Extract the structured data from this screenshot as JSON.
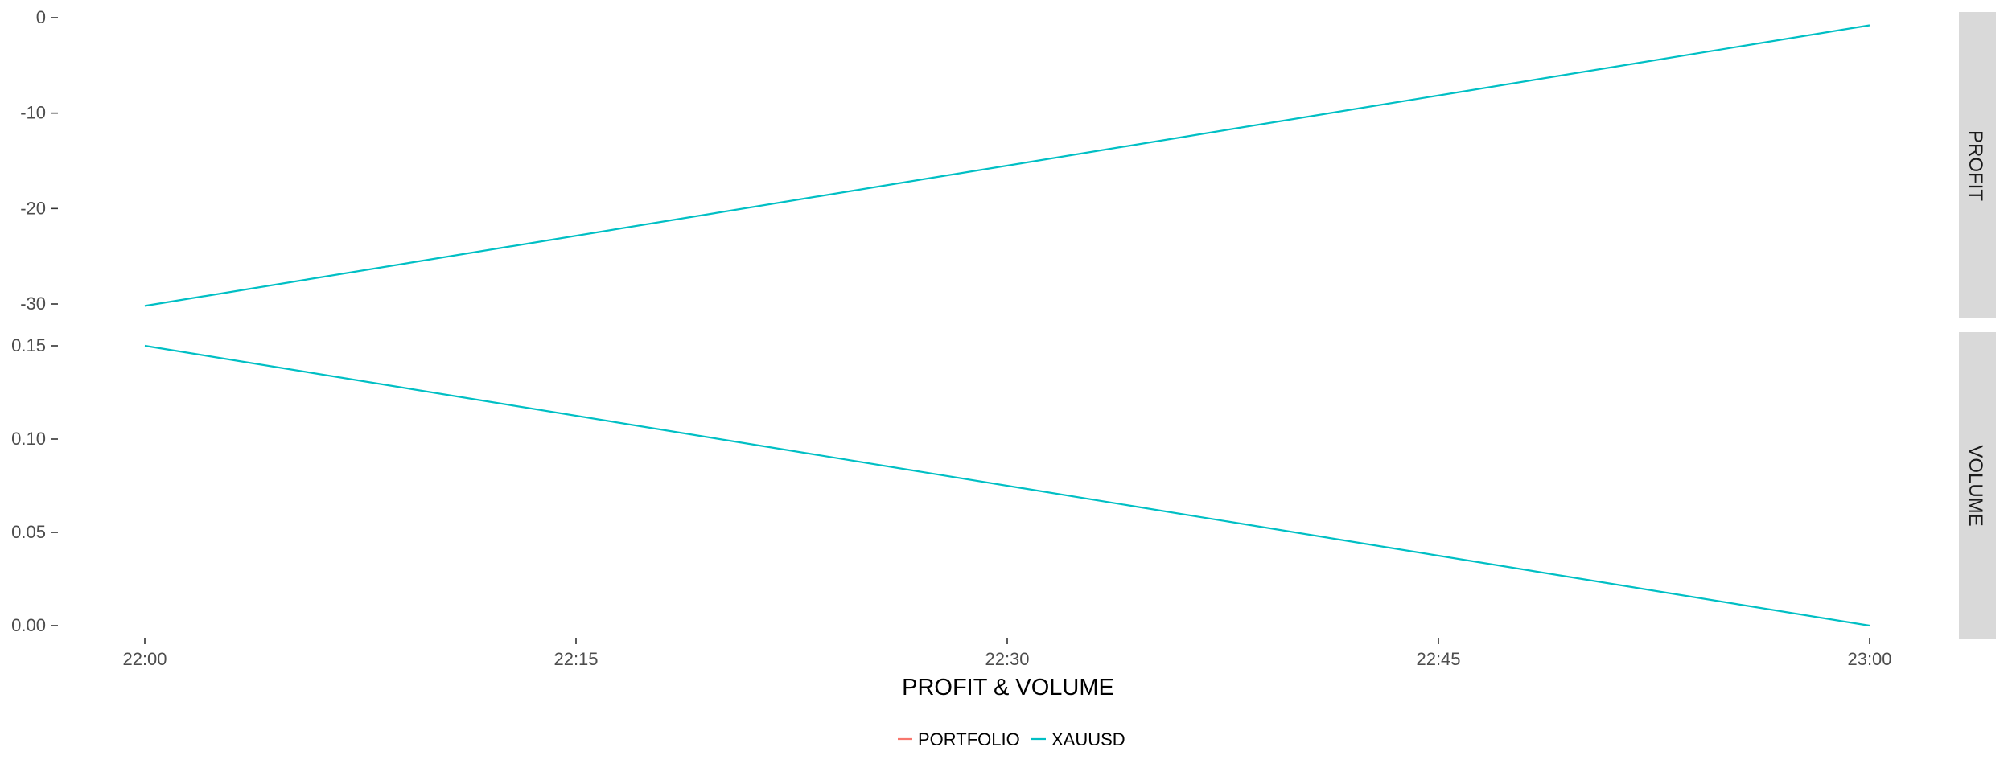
{
  "chart_data": {
    "type": "line",
    "xlabel": "PROFIT & VOLUME",
    "x_ticks": [
      "22:00",
      "22:15",
      "22:30",
      "22:45",
      "23:00"
    ],
    "x": [
      "22:00",
      "23:00"
    ],
    "panels": [
      {
        "strip": "PROFIT",
        "ylim": [
          -31,
          0
        ],
        "y_ticks": [
          0,
          -10,
          -20,
          -30
        ],
        "y_tick_labels": [
          "0",
          "-10",
          "-20",
          "-30"
        ],
        "series": [
          {
            "name": "XAUUSD",
            "values": [
              -30.2,
              -0.8
            ]
          }
        ]
      },
      {
        "strip": "VOLUME",
        "ylim": [
          0,
          0.15
        ],
        "y_ticks": [
          0.15,
          0.1,
          0.05,
          0.0
        ],
        "y_tick_labels": [
          "0.15",
          "0.10",
          "0.05",
          "0.00"
        ],
        "series": [
          {
            "name": "XAUUSD",
            "values": [
              0.15,
              0.0
            ]
          }
        ]
      }
    ],
    "legend": {
      "position": "bottom",
      "items": [
        {
          "name": "PORTFOLIO",
          "color": "#F8766D"
        },
        {
          "name": "XAUUSD",
          "color": "#00BFC4"
        }
      ]
    },
    "grid": false
  }
}
